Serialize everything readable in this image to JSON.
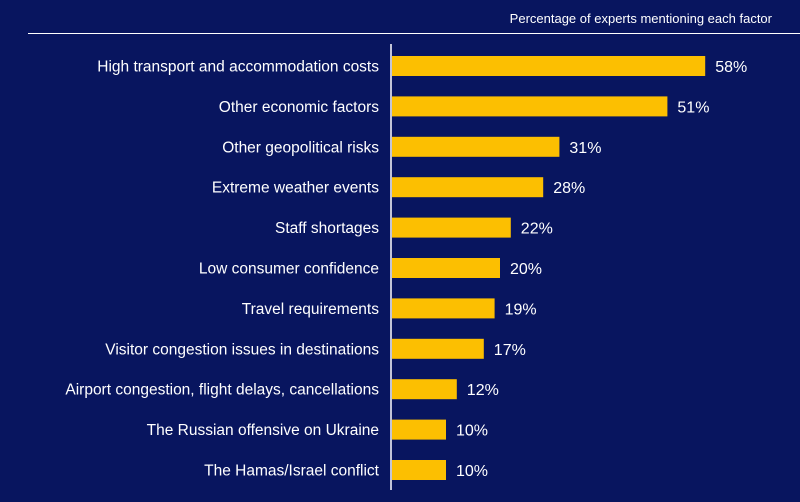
{
  "colors": {
    "background": "#08155f",
    "bar": "#fcbf01",
    "text": "#ffffff",
    "axis": "#ffffff"
  },
  "chart_data": {
    "type": "bar",
    "orientation": "horizontal",
    "subtitle": "Percentage of experts mentioning each factor",
    "categories": [
      "High transport and accommodation costs",
      "Other economic factors",
      "Other geopolitical risks",
      "Extreme weather events",
      "Staff shortages",
      "Low consumer confidence",
      "Travel requirements",
      "Visitor congestion issues in destinations",
      "Airport congestion, flight delays, cancellations",
      "The Russian offensive on Ukraine",
      "The Hamas/Israel conflict"
    ],
    "values": [
      58,
      51,
      31,
      28,
      22,
      20,
      19,
      17,
      12,
      10,
      10
    ],
    "value_labels": [
      "58%",
      "51%",
      "31%",
      "28%",
      "22%",
      "20%",
      "19%",
      "17%",
      "12%",
      "10%",
      "10%"
    ],
    "unit": "%",
    "xlim": [
      0,
      60
    ],
    "grid": false,
    "legend": "none"
  }
}
